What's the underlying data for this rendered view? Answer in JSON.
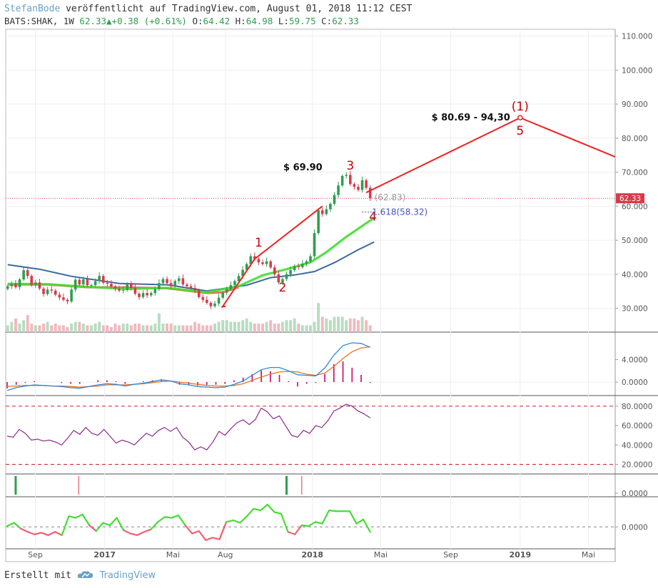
{
  "header": {
    "author": "StefanBode",
    "published": "veröffentlicht auf TradingView.com, August 01, 2018 11:12 CEST",
    "symbol": "BATS:SHAK, 1W",
    "last": "62.33",
    "change_arrow": "▲",
    "change": "+0.38 (+0.61%)",
    "o_label": "O:",
    "o_value": "64.42",
    "h_label": "H:",
    "h_value": "64.98",
    "l_label": "L:",
    "l_value": "59.75",
    "c_label": "C:",
    "c_value": "62.33"
  },
  "footer": {
    "created_with": "Erstellt mit",
    "brand": "TradingView",
    "brand_icon": "cloud-logo-icon"
  },
  "colors": {
    "up": "#2e9e4f",
    "down": "#d93a4a",
    "up_vol": "#b8dcc0",
    "down_vol": "#f2b8bf",
    "ma_blue": "#3a6b9e",
    "ma_green": "#44dd33",
    "ma_red": "#e06040",
    "ma_pink": "#f06070",
    "wave": "#ee2222",
    "label": "#cc0000",
    "rsi": "#8a2a8a",
    "macd": "#2b8ad8",
    "signal": "#f07020",
    "hist": "#cc0066"
  },
  "chart_data": [
    {
      "type": "candlestick",
      "panel": "price",
      "interval": "1W",
      "ylim": [
        23,
        112
      ],
      "yticks": [
        "110.000",
        "100.000",
        "90.000",
        "80.000",
        "70.000",
        "60.000",
        "50.000",
        "40.000",
        "30.000"
      ],
      "ytick_values": [
        110,
        100,
        90,
        80,
        70,
        60,
        50,
        40,
        30
      ],
      "xticks": [
        "Sep",
        "2017",
        "Mai",
        "Aug",
        "2018",
        "Mai",
        "Sep",
        "2019",
        "Mai"
      ],
      "xtick_dates": [
        "2016-09-01",
        "2017-01-01",
        "2017-05-01",
        "2017-08-01",
        "2018-01-01",
        "2018-05-01",
        "2018-09-01",
        "2019-01-01",
        "2019-05-01"
      ],
      "xlim": [
        "2016-07-11",
        "2019-06-17"
      ],
      "last_price": "62.33",
      "closes": [
        36.5,
        37.2,
        36.2,
        38.5,
        41.2,
        39.5,
        36.8,
        37.6,
        35.8,
        34.2,
        35.5,
        35.2,
        34.0,
        33.2,
        32.5,
        32.0,
        35.5,
        38.4,
        37.0,
        38.5,
        36.8,
        36.8,
        38.0,
        39.5,
        37.5,
        37.2,
        36.4,
        35.8,
        35.2,
        35.4,
        37.2,
        36.0,
        34.3,
        33.3,
        34.5,
        33.8,
        34.5,
        35.6,
        37.4,
        38.6,
        37.4,
        36.5,
        38.0,
        38.8,
        37.0,
        36.5,
        36.0,
        35.3,
        33.3,
        32.5,
        31.6,
        30.6,
        31.4,
        33.1,
        34.6,
        35.6,
        36.8,
        38.0,
        39.5,
        41.3,
        43.0,
        45.3,
        44.5,
        43.5,
        43.0,
        43.8,
        42.0,
        40.0,
        37.6,
        38.6,
        40.0,
        41.2,
        42.4,
        42.1,
        43.1,
        43.8,
        45.3,
        52.1,
        58.8,
        57.7,
        59.1,
        60.7,
        63.3,
        66.1,
        68.9,
        69.2,
        66.5,
        65.7,
        64.8,
        67.6,
        65.4,
        62.33
      ],
      "volumes": [
        4,
        6,
        8,
        5,
        7,
        10,
        5,
        4,
        4,
        5,
        6,
        4,
        5,
        4,
        4,
        3,
        5,
        6,
        6,
        5,
        4,
        4,
        5,
        6,
        4,
        4,
        3,
        5,
        4,
        5,
        5,
        4,
        5,
        5,
        4,
        4,
        4,
        5,
        11,
        5,
        5,
        5,
        4,
        4,
        4,
        4,
        4,
        6,
        5,
        4,
        4,
        4,
        5,
        6,
        7,
        7,
        6,
        6,
        6,
        7,
        8,
        6,
        5,
        5,
        5,
        6,
        7,
        5,
        5,
        6,
        7,
        7,
        8,
        5,
        4,
        4,
        4,
        6,
        17,
        9,
        8,
        7,
        9,
        9,
        9,
        7,
        8,
        8,
        7,
        9,
        7,
        4
      ],
      "moving_averages": {
        "ma_blue": [
          [
            0,
            42.8
          ],
          [
            8,
            41.5
          ],
          [
            16,
            39.4
          ],
          [
            28,
            37.3
          ],
          [
            40,
            36.9
          ],
          [
            50,
            35.1
          ],
          [
            60,
            36.8
          ],
          [
            66,
            39.0
          ],
          [
            72,
            39.8
          ],
          [
            77,
            40.8
          ],
          [
            82,
            43.4
          ],
          [
            88,
            47.2
          ],
          [
            92,
            49.5
          ]
        ],
        "ma_green": [
          [
            0,
            37.2
          ],
          [
            10,
            37.1
          ],
          [
            20,
            36.3
          ],
          [
            30,
            35.7
          ],
          [
            40,
            36.0
          ],
          [
            50,
            34.7
          ],
          [
            58,
            36.5
          ],
          [
            64,
            39.7
          ],
          [
            70,
            41.5
          ],
          [
            76,
            43.5
          ],
          [
            80,
            46.5
          ],
          [
            85,
            51.0
          ],
          [
            90,
            55.0
          ],
          [
            92,
            56.5
          ]
        ],
        "ma_red": [
          [
            0,
            37.0
          ],
          [
            10,
            37.0
          ],
          [
            20,
            36.2
          ],
          [
            30,
            36.1
          ],
          [
            40,
            35.9
          ],
          [
            50,
            34.5
          ],
          [
            54,
            34.7
          ],
          [
            58,
            36.2
          ]
        ]
      },
      "elliott_wave": [
        {
          "label": "1",
          "value": 46.5
        },
        {
          "label": "2",
          "value": 37.0
        },
        {
          "label": "3",
          "value": 69.9
        },
        {
          "label": "4",
          "value": 56.0
        },
        {
          "label": "(1)",
          "value": 86.0
        },
        {
          "label": "5",
          "value": 86.0
        }
      ],
      "annotations": [
        "$ 69.90",
        "$ 80.69 - 94,30",
        "(62.83)",
        "1.618(58.32)"
      ]
    },
    {
      "type": "line",
      "panel": "macd",
      "yticks": [
        "4.0000",
        "0.0000"
      ],
      "ytick_values": [
        4,
        0
      ],
      "ylim": [
        -1.9,
        8.4
      ],
      "series": [
        {
          "role": "macd",
          "values": [
            -1.5,
            -1.0,
            -0.7,
            -0.5,
            -0.6,
            -0.7,
            -0.8,
            -1.0,
            -1.1,
            -0.8,
            -0.5,
            -0.3,
            -0.4,
            -0.7,
            -0.4,
            -0.2,
            0.1,
            0.4,
            0.2,
            -0.3,
            -0.5,
            -0.8,
            -0.9,
            -1.0,
            -0.9,
            -0.4,
            0.2,
            1.2,
            2.2,
            2.6,
            2.6,
            2.0,
            1.3,
            1.2,
            1.1,
            2.5,
            4.8,
            6.5,
            7.0,
            6.9,
            6.2
          ]
        },
        {
          "role": "signal",
          "values": [
            -0.8,
            -0.7,
            -0.6,
            -0.6,
            -0.6,
            -0.7,
            -0.7,
            -0.8,
            -0.9,
            -0.8,
            -0.7,
            -0.5,
            -0.5,
            -0.5,
            -0.4,
            -0.3,
            -0.1,
            0.1,
            0.2,
            0.0,
            -0.2,
            -0.4,
            -0.6,
            -0.7,
            -0.7,
            -0.6,
            -0.3,
            0.3,
            0.9,
            1.4,
            1.8,
            1.9,
            1.8,
            1.4,
            1.2,
            1.6,
            2.8,
            4.2,
            5.4,
            6.1,
            6.3
          ]
        }
      ]
    },
    {
      "type": "line",
      "panel": "rsi",
      "yticks": [
        "80.0000",
        "60.0000",
        "40.0000",
        "20.0000"
      ],
      "ytick_values": [
        80,
        60,
        40,
        20
      ],
      "ylim": [
        13,
        88
      ],
      "bands": [
        80,
        20
      ],
      "series": [
        {
          "role": "rsi",
          "values": [
            49,
            48,
            56,
            52,
            45,
            46,
            44,
            45,
            43,
            40,
            47,
            55,
            51,
            58,
            52,
            50,
            56,
            49,
            42,
            45,
            43,
            40,
            46,
            52,
            49,
            55,
            58,
            54,
            58,
            48,
            43,
            35,
            38,
            35,
            43,
            54,
            50,
            57,
            63,
            66,
            61,
            66,
            78,
            74,
            67,
            70,
            60,
            50,
            48,
            55,
            52,
            60,
            58,
            65,
            75,
            78,
            82,
            80,
            75,
            72,
            68
          ]
        }
      ]
    },
    {
      "type": "bar",
      "panel": "signals",
      "yticks": [
        "0.0000"
      ],
      "ytick_values": [
        0
      ],
      "events": [
        {
          "week": 2,
          "side": "up"
        },
        {
          "week": 18,
          "side": "down"
        },
        {
          "week": 70,
          "side": "up"
        },
        {
          "week": 74,
          "side": "down"
        }
      ]
    },
    {
      "type": "line",
      "panel": "oscillator",
      "yticks": [
        "0.0000"
      ],
      "ytick_values": [
        0
      ],
      "ylim": [
        -2.3,
        3.3
      ],
      "series": [
        {
          "role": "osc",
          "values": [
            0.1,
            0.5,
            -0.2,
            -0.6,
            -0.9,
            -0.7,
            -1.0,
            -0.6,
            -1.0,
            1.3,
            1.1,
            1.5,
            0.2,
            -0.5,
            0.5,
            0.2,
            1.1,
            -0.4,
            -0.8,
            -1.0,
            -0.6,
            -0.3,
            0.6,
            1.2,
            1.1,
            1.4,
            0.2,
            -0.8,
            -0.5,
            -1.6,
            -1.3,
            -1.5,
            0.6,
            0.8,
            0.5,
            1.3,
            2.2,
            2.0,
            2.7,
            1.8,
            1.6,
            -0.6,
            -0.9,
            0.2,
            0.1,
            0.6,
            0.4,
            2.0,
            1.9,
            1.9,
            1.9,
            0.4,
            0.9,
            -0.6
          ]
        }
      ]
    }
  ]
}
